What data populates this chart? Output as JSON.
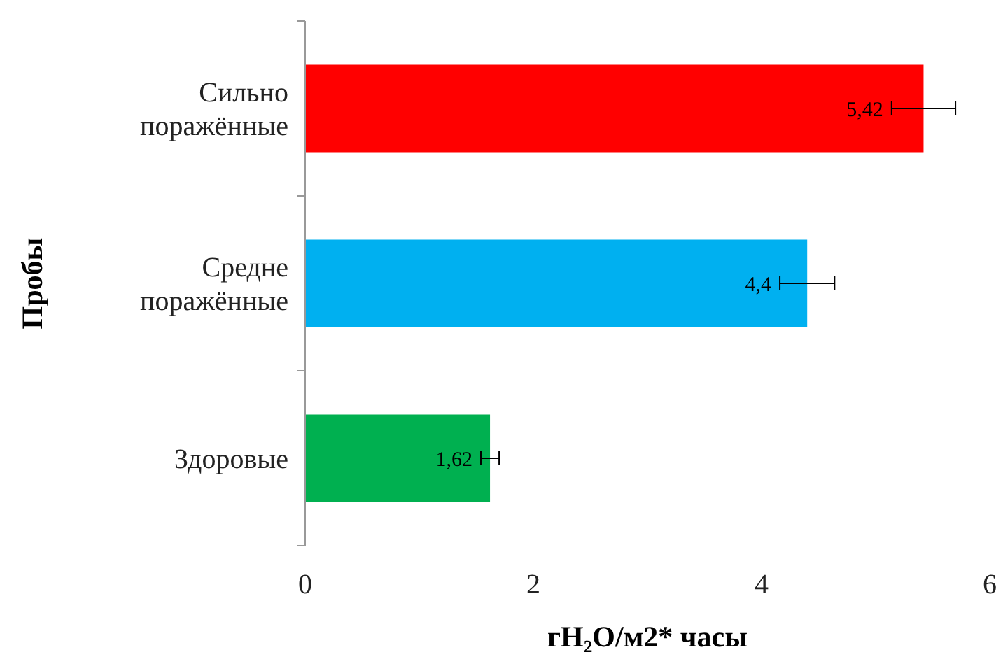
{
  "chart_data": {
    "type": "bar",
    "orientation": "horizontal",
    "xlabel": "гH₂O/м2* часы",
    "ylabel": "Пробы",
    "categories": [
      "Сильно поражённые",
      "Средне поражённые",
      "Здоровые"
    ],
    "values": [
      5.42,
      4.4,
      1.62
    ],
    "colors": [
      "#ff0000",
      "#00b0f0",
      "#00b050"
    ],
    "errors": [
      0.28,
      0.24,
      0.08
    ],
    "value_labels": [
      "5,42",
      "4,4",
      "1,62"
    ],
    "xlim": [
      0,
      6
    ],
    "xticks": [
      0,
      2,
      4,
      6
    ],
    "grid": false
  }
}
